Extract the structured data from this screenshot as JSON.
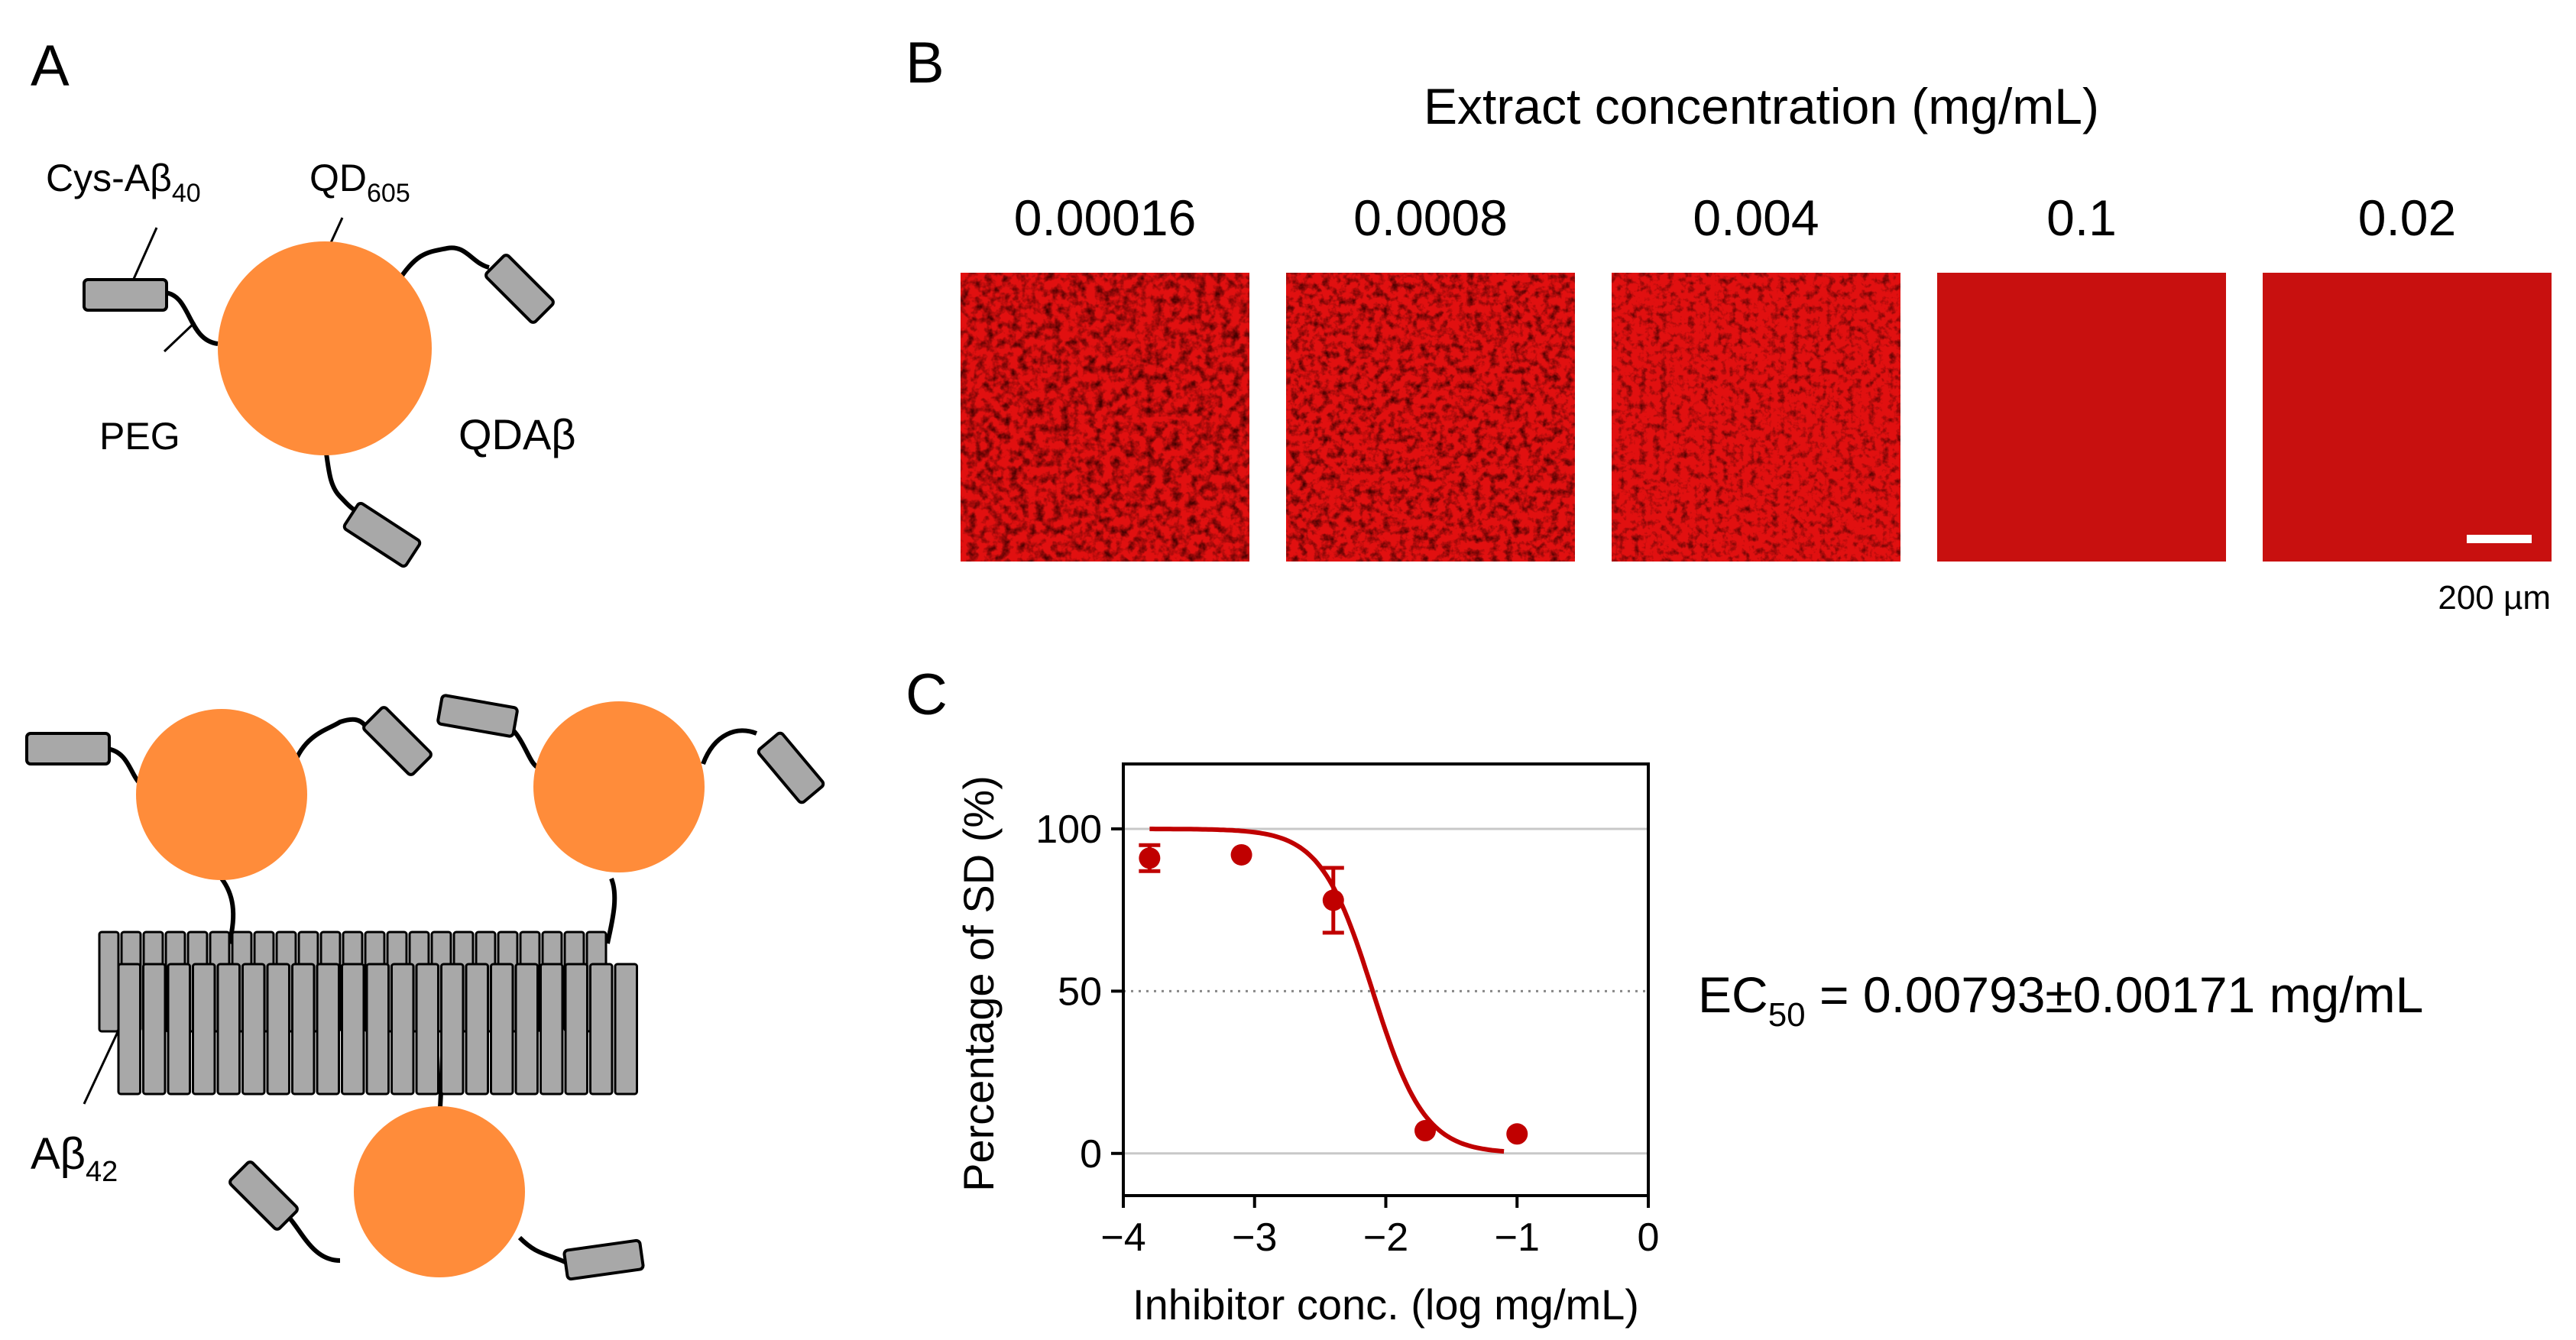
{
  "panel_labels": {
    "a": "A",
    "b": "B",
    "c": "C"
  },
  "panel_a": {
    "cys_label": "Cys-Aβ",
    "cys_sub": "40",
    "qd_label": "QD",
    "qd_sub": "605",
    "peg_label": "PEG",
    "qdab_label": "QDAβ",
    "ab42_label": "Aβ",
    "ab42_sub": "42"
  },
  "panel_b": {
    "title": "Extract concentration (mg/mL)",
    "concentrations": [
      "0.00016",
      "0.0008",
      "0.004",
      "0.1",
      "0.02"
    ],
    "scale_bar_label": "200 µm"
  },
  "colors": {
    "quantum_dot": "#FF8C3A",
    "peptide": "#A8A8A8",
    "curve": "#C00000",
    "image_red": "#E11010",
    "image_uniform": "#C8100F"
  },
  "panel_c": {
    "ec50_prefix": "EC",
    "ec50_sub": "50",
    "ec50_value": " = 0.00793±0.00171 mg/mL"
  },
  "chart_data": {
    "type": "scatter",
    "title": "",
    "xlabel": "Inhibitor conc. (log mg/mL)",
    "ylabel": "Percentage of SD (%)",
    "xlim": [
      -4,
      0
    ],
    "ylim": [
      -13,
      120
    ],
    "xticks": [
      "−4",
      "−3",
      "−2",
      "−1",
      "0"
    ],
    "yticks": [
      "0",
      "50",
      "100"
    ],
    "grid_y": [
      0,
      100
    ],
    "dotted_y": 50,
    "points": [
      {
        "x": -3.8,
        "y": 91,
        "err": 4
      },
      {
        "x": -3.1,
        "y": 92,
        "err": 0
      },
      {
        "x": -2.4,
        "y": 78,
        "err": 10
      },
      {
        "x": -1.7,
        "y": 7,
        "err": 0
      },
      {
        "x": -1.0,
        "y": 6,
        "err": 0
      }
    ],
    "fit": {
      "model": "logistic",
      "top": 100,
      "bottom": 0,
      "logEC50": -2.1,
      "hill": -2.2,
      "x_range": [
        -3.8,
        -1.1
      ]
    }
  }
}
